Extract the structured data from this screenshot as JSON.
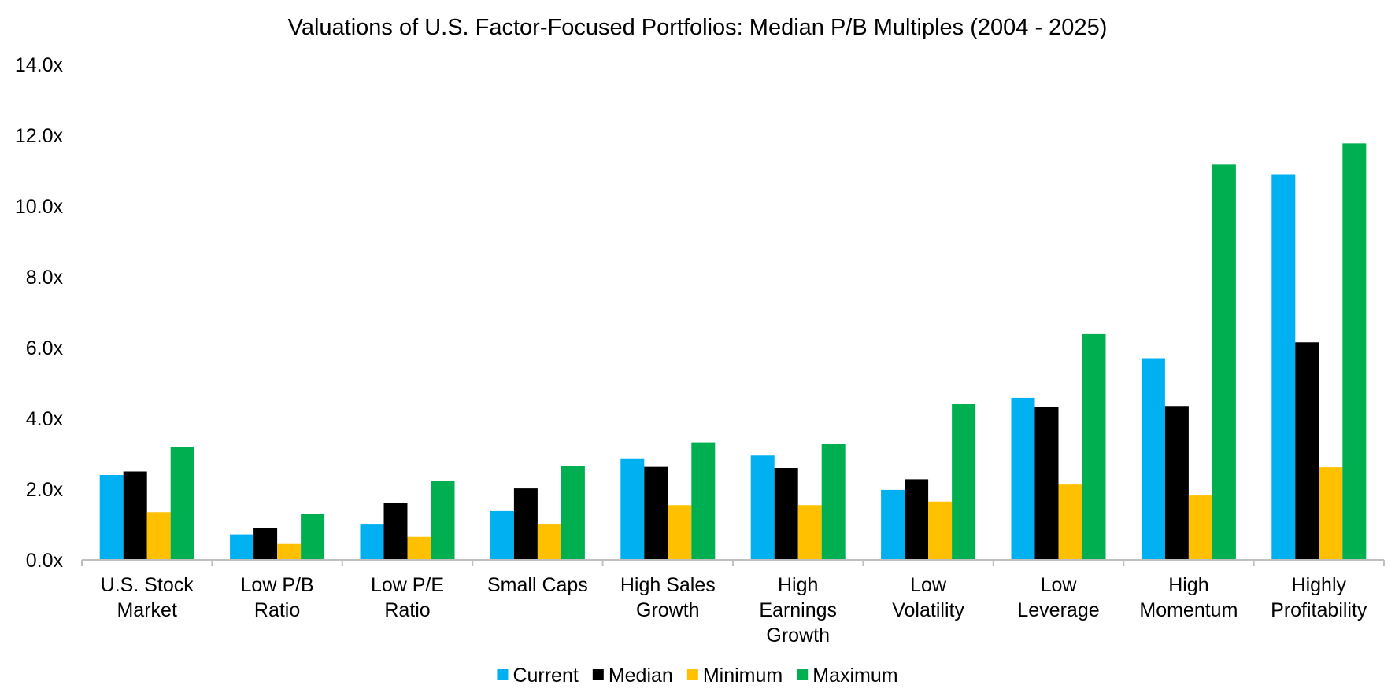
{
  "chart_data": {
    "type": "bar",
    "title": "Valuations of U.S. Factor-Focused Portfolios: Median P/B Multiples (2004 - 2025)",
    "xlabel": "",
    "ylabel": "",
    "ylim": [
      0,
      14
    ],
    "yticks": [
      {
        "value": 0,
        "label": "0.0x"
      },
      {
        "value": 2,
        "label": "2.0x"
      },
      {
        "value": 4,
        "label": "4.0x"
      },
      {
        "value": 6,
        "label": "6.0x"
      },
      {
        "value": 8,
        "label": "8.0x"
      },
      {
        "value": 10,
        "label": "10.0x"
      },
      {
        "value": 12,
        "label": "12.0x"
      },
      {
        "value": 14,
        "label": "14.0x"
      }
    ],
    "grid": false,
    "legend_position": "bottom",
    "categories": [
      [
        "U.S. Stock",
        "Market"
      ],
      [
        "Low P/B",
        "Ratio"
      ],
      [
        "Low P/E",
        "Ratio"
      ],
      [
        "Small Caps"
      ],
      [
        "High Sales",
        "Growth"
      ],
      [
        "High",
        "Earnings",
        "Growth"
      ],
      [
        "Low",
        "Volatility"
      ],
      [
        "Low",
        "Leverage"
      ],
      [
        "High",
        "Momentum"
      ],
      [
        "Highly",
        "Profitability"
      ]
    ],
    "series": [
      {
        "name": "Current",
        "color": "#00B0F0",
        "values": [
          2.4,
          0.72,
          1.02,
          1.38,
          2.85,
          2.95,
          1.98,
          4.58,
          5.7,
          10.9
        ]
      },
      {
        "name": "Median",
        "color": "#000000",
        "values": [
          2.5,
          0.9,
          1.62,
          2.02,
          2.63,
          2.6,
          2.28,
          4.33,
          4.35,
          6.15
        ]
      },
      {
        "name": "Minimum",
        "color": "#FFC000",
        "values": [
          1.35,
          0.45,
          0.65,
          1.02,
          1.55,
          1.55,
          1.65,
          2.13,
          1.82,
          2.62
        ]
      },
      {
        "name": "Maximum",
        "color": "#00B050",
        "values": [
          3.18,
          1.3,
          2.23,
          2.65,
          3.32,
          3.27,
          4.4,
          6.38,
          11.17,
          11.77
        ]
      }
    ]
  }
}
